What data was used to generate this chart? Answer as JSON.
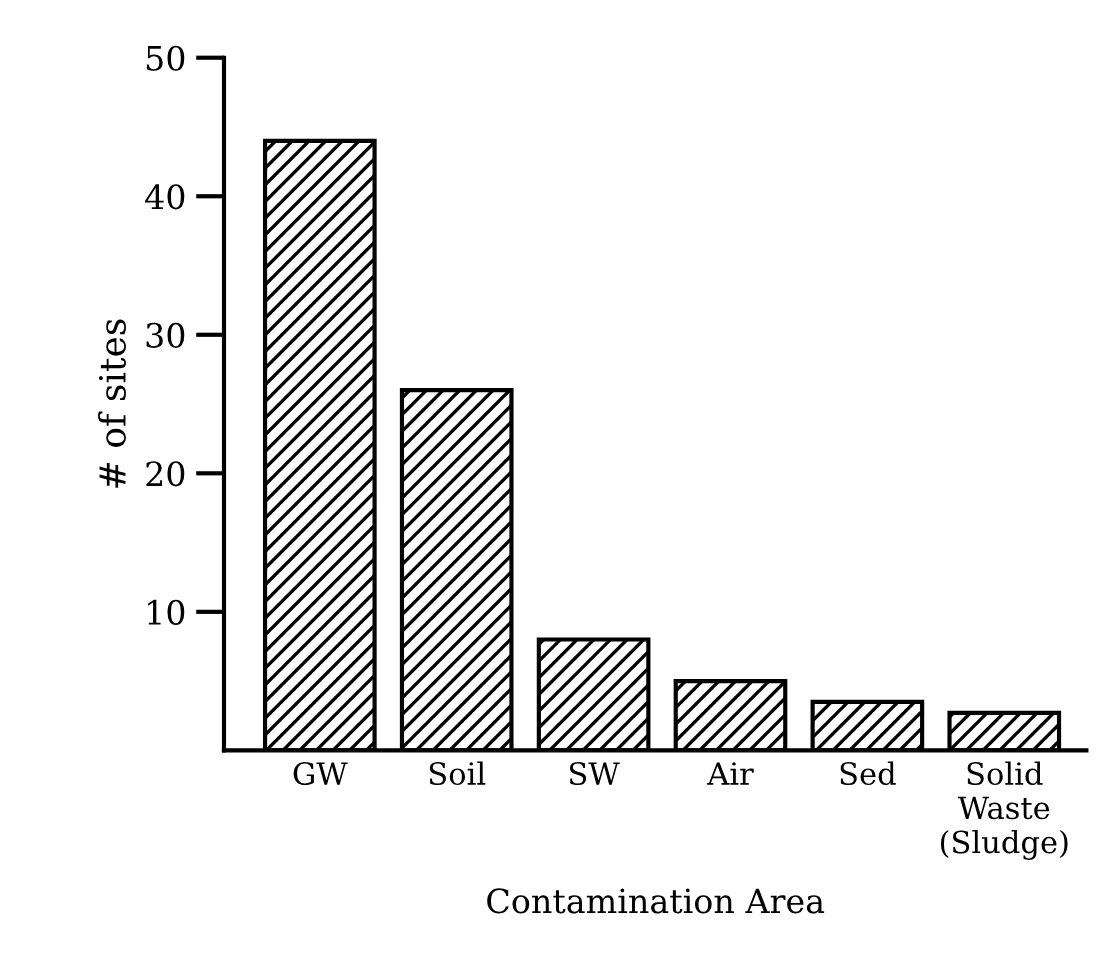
{
  "chart_data": {
    "type": "bar",
    "xlabel": "Contamination Area",
    "ylabel": "# of sites",
    "categories": [
      "GW",
      "Soil",
      "SW",
      "Air",
      "Sed",
      "Solid\nWaste\n(Sludge)"
    ],
    "values": [
      44,
      26,
      8,
      5,
      3.5,
      2.7
    ],
    "color": "#000000",
    "ylim": [
      0,
      50
    ],
    "yticks": [
      10,
      20,
      30,
      40,
      50
    ],
    "grid": false
  }
}
